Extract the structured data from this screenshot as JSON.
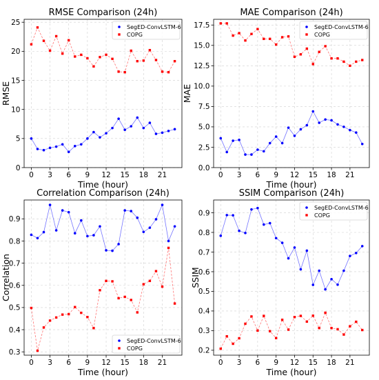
{
  "chart_data": [
    {
      "type": "line",
      "title": "RMSE Comparison (24h)",
      "xlabel": "Time (hour)",
      "ylabel": "RMSE",
      "x": [
        0,
        1,
        2,
        3,
        4,
        5,
        6,
        7,
        8,
        9,
        10,
        11,
        12,
        13,
        14,
        15,
        16,
        17,
        18,
        19,
        20,
        21,
        22,
        23
      ],
      "xticks": [
        0,
        3,
        6,
        9,
        12,
        15,
        18,
        21
      ],
      "ylim": [
        0,
        25.5
      ],
      "yticks": [
        0,
        5,
        10,
        15,
        20,
        25
      ],
      "ytick_labels": [
        "0",
        "5",
        "10",
        "15",
        "20",
        "25"
      ],
      "grid": true,
      "legend_position": "top-right",
      "series": [
        {
          "name": "SegED-ConvLSTM-6",
          "color": "#0000ff",
          "marker": "circle",
          "line": "solid",
          "values": [
            5.0,
            3.2,
            3.0,
            3.4,
            3.6,
            4.0,
            2.7,
            3.7,
            4.0,
            5.0,
            6.1,
            5.2,
            5.9,
            6.8,
            8.4,
            6.5,
            7.1,
            8.6,
            6.8,
            7.7,
            5.8,
            6.0,
            6.3,
            6.6
          ]
        },
        {
          "name": "COPG",
          "color": "#ff0000",
          "marker": "square",
          "line": "dashed",
          "values": [
            21.2,
            24.1,
            21.8,
            20.1,
            22.6,
            19.6,
            21.9,
            19.1,
            19.4,
            18.8,
            17.4,
            19.0,
            19.4,
            18.7,
            16.5,
            16.4,
            20.1,
            18.3,
            18.4,
            20.2,
            18.5,
            16.5,
            16.4,
            18.3
          ]
        }
      ]
    },
    {
      "type": "line",
      "title": "MAE Comparison (24h)",
      "xlabel": "Time (hour)",
      "ylabel": "MAE",
      "x": [
        0,
        1,
        2,
        3,
        4,
        5,
        6,
        7,
        8,
        9,
        10,
        11,
        12,
        13,
        14,
        15,
        16,
        17,
        18,
        19,
        20,
        21,
        22,
        23
      ],
      "xticks": [
        0,
        3,
        6,
        9,
        12,
        15,
        18,
        21
      ],
      "ylim": [
        0,
        18.2
      ],
      "yticks": [
        0,
        2.5,
        5,
        7.5,
        10,
        12.5,
        15,
        17.5
      ],
      "ytick_labels": [
        "0.0",
        "2.5",
        "5.0",
        "7.5",
        "10.0",
        "12.5",
        "15.0",
        "17.5"
      ],
      "grid": true,
      "legend_position": "top-right",
      "series": [
        {
          "name": "SegED-ConvLSTM-6",
          "color": "#0000ff",
          "marker": "circle",
          "line": "solid",
          "values": [
            3.6,
            1.9,
            3.3,
            3.4,
            1.6,
            1.6,
            2.2,
            2.0,
            3.0,
            3.8,
            3.0,
            4.9,
            3.9,
            4.7,
            5.2,
            6.9,
            5.5,
            5.9,
            5.8,
            5.3,
            5.0,
            4.6,
            4.3,
            2.9
          ]
        },
        {
          "name": "COPG",
          "color": "#ff0000",
          "marker": "square",
          "line": "dashed",
          "values": [
            17.7,
            17.7,
            16.2,
            16.5,
            15.6,
            16.4,
            17.0,
            15.8,
            15.8,
            15.1,
            16.0,
            16.1,
            13.6,
            13.9,
            14.6,
            12.7,
            14.2,
            14.9,
            13.4,
            13.4,
            13.0,
            12.5,
            13.0,
            13.2
          ]
        }
      ]
    },
    {
      "type": "line",
      "title": "Correlation Comparison (24h)",
      "xlabel": "Time (hour)",
      "ylabel": "Correlation",
      "x": [
        0,
        1,
        2,
        3,
        4,
        5,
        6,
        7,
        8,
        9,
        10,
        11,
        12,
        13,
        14,
        15,
        16,
        17,
        18,
        19,
        20,
        21,
        22,
        23
      ],
      "xticks": [
        0,
        3,
        6,
        9,
        12,
        15,
        18,
        21
      ],
      "ylim": [
        0.285,
        0.985
      ],
      "yticks": [
        0.3,
        0.4,
        0.5,
        0.6,
        0.7,
        0.8,
        0.9
      ],
      "ytick_labels": [
        "0.3",
        "0.4",
        "0.5",
        "0.6",
        "0.7",
        "0.8",
        "0.9"
      ],
      "grid": true,
      "legend_position": "bottom-right",
      "series": [
        {
          "name": "SegED-ConvLSTM-6",
          "color": "#0000ff",
          "marker": "circle",
          "line": "solid",
          "values": [
            0.828,
            0.813,
            0.84,
            0.963,
            0.848,
            0.938,
            0.93,
            0.835,
            0.893,
            0.822,
            0.826,
            0.866,
            0.758,
            0.756,
            0.786,
            0.938,
            0.935,
            0.905,
            0.841,
            0.86,
            0.898,
            0.963,
            0.8,
            0.866
          ]
        },
        {
          "name": "COPG",
          "color": "#ff0000",
          "marker": "square",
          "line": "dashed",
          "values": [
            0.498,
            0.305,
            0.41,
            0.441,
            0.455,
            0.468,
            0.47,
            0.502,
            0.476,
            0.457,
            0.407,
            0.578,
            0.62,
            0.618,
            0.542,
            0.548,
            0.534,
            0.478,
            0.605,
            0.62,
            0.664,
            0.594,
            0.769,
            0.518
          ]
        }
      ]
    },
    {
      "type": "line",
      "title": "SSIM Comparison (24h)",
      "xlabel": "Time (hour)",
      "ylabel": "SSIM",
      "x": [
        0,
        1,
        2,
        3,
        4,
        5,
        6,
        7,
        8,
        9,
        10,
        11,
        12,
        13,
        14,
        15,
        16,
        17,
        18,
        19,
        20,
        21,
        22,
        23
      ],
      "xticks": [
        0,
        3,
        6,
        9,
        12,
        15,
        18,
        21
      ],
      "ylim": [
        0.175,
        0.965
      ],
      "yticks": [
        0.2,
        0.3,
        0.4,
        0.5,
        0.6,
        0.7,
        0.8,
        0.9
      ],
      "ytick_labels": [
        "0.2",
        "0.3",
        "0.4",
        "0.5",
        "0.6",
        "0.7",
        "0.8",
        "0.9"
      ],
      "grid": true,
      "legend_position": "top-right",
      "series": [
        {
          "name": "SegED-ConvLSTM-6",
          "color": "#0000ff",
          "marker": "circle",
          "line": "solid",
          "values": [
            0.783,
            0.888,
            0.887,
            0.808,
            0.797,
            0.917,
            0.924,
            0.84,
            0.847,
            0.771,
            0.747,
            0.668,
            0.723,
            0.612,
            0.707,
            0.533,
            0.605,
            0.51,
            0.562,
            0.534,
            0.605,
            0.68,
            0.695,
            0.73
          ]
        },
        {
          "name": "COPG",
          "color": "#ff0000",
          "marker": "square",
          "line": "dashed",
          "values": [
            0.208,
            0.271,
            0.233,
            0.261,
            0.335,
            0.372,
            0.3,
            0.375,
            0.297,
            0.262,
            0.355,
            0.305,
            0.369,
            0.375,
            0.346,
            0.376,
            0.313,
            0.391,
            0.313,
            0.307,
            0.28,
            0.322,
            0.345,
            0.303
          ]
        }
      ]
    }
  ]
}
